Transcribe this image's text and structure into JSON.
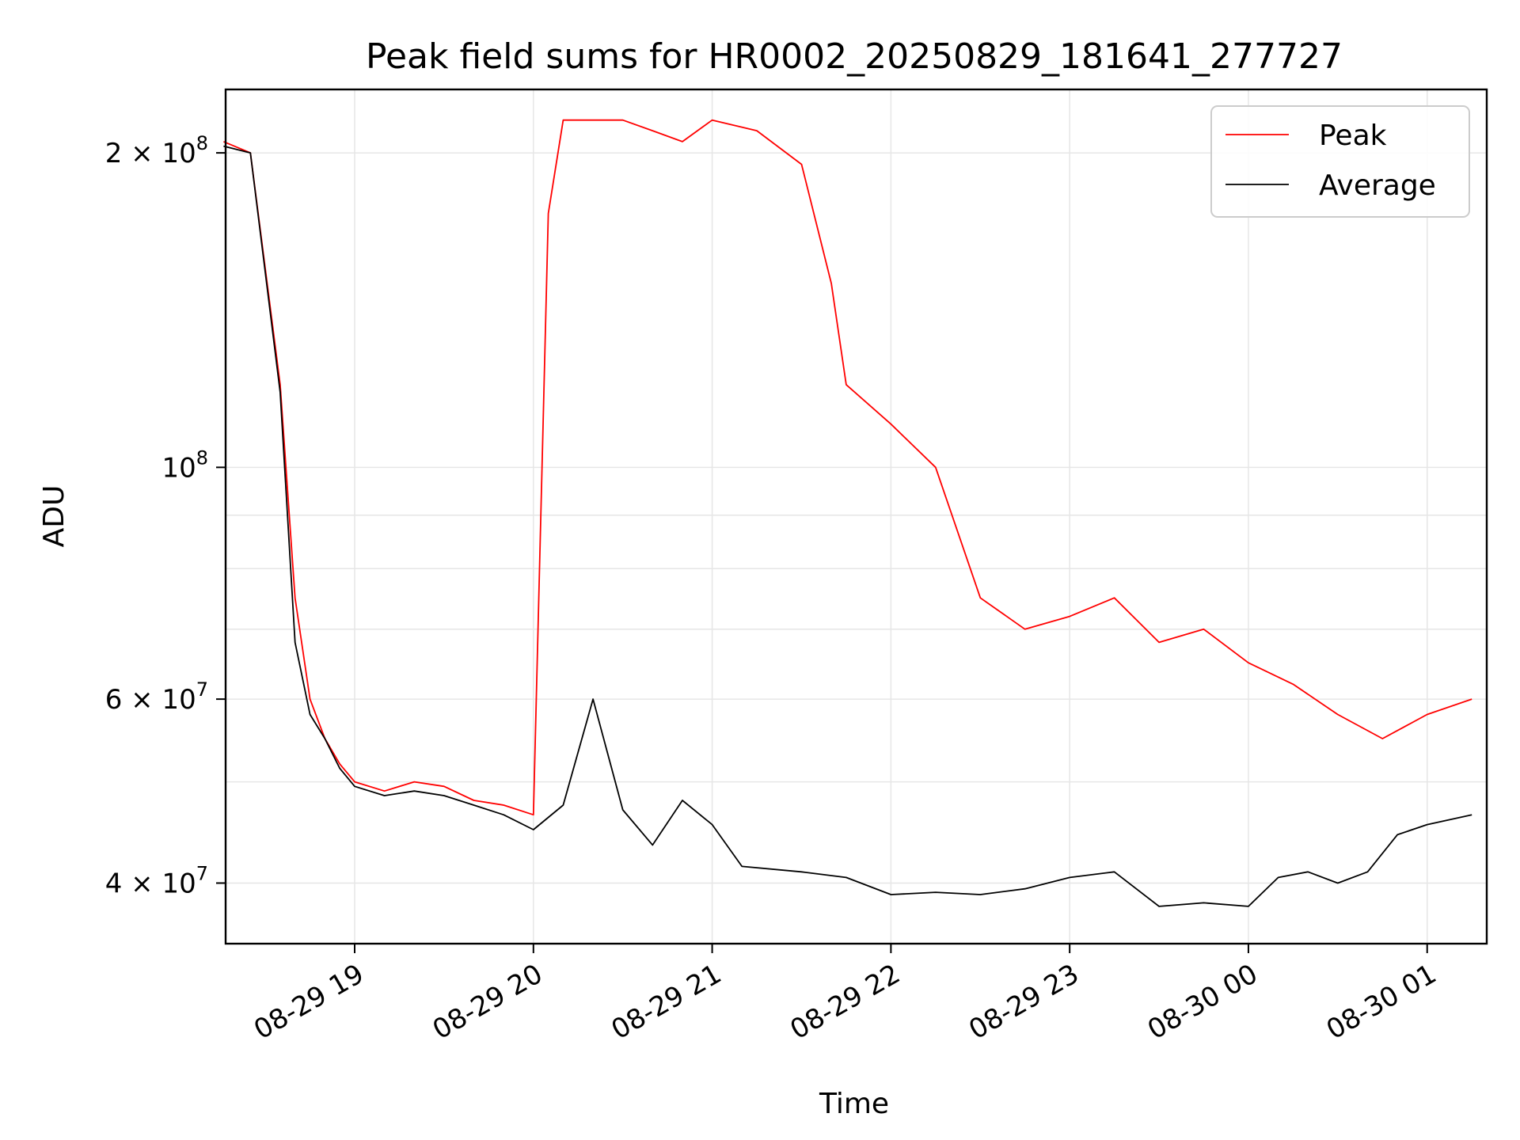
{
  "chart_data": {
    "type": "line",
    "title": "Peak field sums for HR0002_20250829_181641_277727",
    "xlabel": "Time",
    "ylabel": "ADU",
    "y_scale": "log",
    "ylim": [
      35000000,
      230000000
    ],
    "xlim": [
      "2025-08-29 18:16:41",
      "2025-08-30 01:20:00"
    ],
    "grid": true,
    "legend_position": "top-right",
    "x_ticks": [
      {
        "t": "2025-08-29 19:00",
        "label": "08-29 19"
      },
      {
        "t": "2025-08-29 20:00",
        "label": "08-29 20"
      },
      {
        "t": "2025-08-29 21:00",
        "label": "08-29 21"
      },
      {
        "t": "2025-08-29 22:00",
        "label": "08-29 22"
      },
      {
        "t": "2025-08-29 23:00",
        "label": "08-29 23"
      },
      {
        "t": "2025-08-30 00:00",
        "label": "08-30 00"
      },
      {
        "t": "2025-08-30 01:00",
        "label": "08-30 01"
      }
    ],
    "y_ticks": [
      {
        "value": 40000000,
        "label": "4 × 10",
        "exp": "7"
      },
      {
        "value": 60000000,
        "label": "6 × 10",
        "exp": "7"
      },
      {
        "value": 100000000,
        "label": "10",
        "exp": "8"
      },
      {
        "value": 200000000,
        "label": "2 × 10",
        "exp": "8"
      }
    ],
    "series": [
      {
        "name": "Peak",
        "color": "#ff0000",
        "x": [
          "2025-08-29 18:16",
          "2025-08-29 18:25",
          "2025-08-29 18:35",
          "2025-08-29 18:40",
          "2025-08-29 18:45",
          "2025-08-29 18:50",
          "2025-08-29 18:55",
          "2025-08-29 19:00",
          "2025-08-29 19:10",
          "2025-08-29 19:20",
          "2025-08-29 19:30",
          "2025-08-29 19:40",
          "2025-08-29 19:50",
          "2025-08-29 20:00",
          "2025-08-29 20:05",
          "2025-08-29 20:10",
          "2025-08-29 20:20",
          "2025-08-29 20:30",
          "2025-08-29 20:40",
          "2025-08-29 20:50",
          "2025-08-29 21:00",
          "2025-08-29 21:15",
          "2025-08-29 21:30",
          "2025-08-29 21:40",
          "2025-08-29 21:45",
          "2025-08-29 22:00",
          "2025-08-29 22:15",
          "2025-08-29 22:30",
          "2025-08-29 22:45",
          "2025-08-29 23:00",
          "2025-08-29 23:15",
          "2025-08-29 23:30",
          "2025-08-29 23:45",
          "2025-08-30 00:00",
          "2025-08-30 00:15",
          "2025-08-30 00:30",
          "2025-08-30 00:45",
          "2025-08-30 01:00",
          "2025-08-30 01:15"
        ],
        "y": [
          205000000,
          200000000,
          120000000,
          75000000,
          60000000,
          55000000,
          52000000,
          50000000,
          49000000,
          50000000,
          49500000,
          48000000,
          47500000,
          46500000,
          175000000,
          215000000,
          215000000,
          215000000,
          210000000,
          205000000,
          215000000,
          210000000,
          195000000,
          150000000,
          120000000,
          110000000,
          100000000,
          75000000,
          70000000,
          72000000,
          75000000,
          68000000,
          70000000,
          65000000,
          62000000,
          58000000,
          55000000,
          58000000,
          60000000
        ]
      },
      {
        "name": "Average",
        "color": "#000000",
        "x": [
          "2025-08-29 18:16",
          "2025-08-29 18:25",
          "2025-08-29 18:35",
          "2025-08-29 18:40",
          "2025-08-29 18:45",
          "2025-08-29 18:50",
          "2025-08-29 18:55",
          "2025-08-29 19:00",
          "2025-08-29 19:10",
          "2025-08-29 19:20",
          "2025-08-29 19:30",
          "2025-08-29 19:40",
          "2025-08-29 19:50",
          "2025-08-29 20:00",
          "2025-08-29 20:10",
          "2025-08-29 20:20",
          "2025-08-29 20:30",
          "2025-08-29 20:40",
          "2025-08-29 20:50",
          "2025-08-29 21:00",
          "2025-08-29 21:10",
          "2025-08-29 21:30",
          "2025-08-29 21:45",
          "2025-08-29 22:00",
          "2025-08-29 22:15",
          "2025-08-29 22:30",
          "2025-08-29 22:45",
          "2025-08-29 23:00",
          "2025-08-29 23:15",
          "2025-08-29 23:30",
          "2025-08-29 23:45",
          "2025-08-30 00:00",
          "2025-08-30 00:10",
          "2025-08-30 00:20",
          "2025-08-30 00:30",
          "2025-08-30 00:40",
          "2025-08-30 00:50",
          "2025-08-30 01:00",
          "2025-08-30 01:15"
        ],
        "y": [
          203000000,
          200000000,
          118000000,
          68000000,
          58000000,
          55000000,
          51500000,
          49500000,
          48500000,
          49000000,
          48500000,
          47500000,
          46500000,
          45000000,
          47500000,
          60000000,
          47000000,
          43500000,
          48000000,
          45500000,
          41500000,
          41000000,
          40500000,
          39000000,
          39200000,
          39000000,
          39500000,
          40500000,
          41000000,
          38000000,
          38300000,
          38000000,
          40500000,
          41000000,
          40000000,
          41000000,
          44500000,
          45500000,
          46500000
        ]
      }
    ]
  }
}
